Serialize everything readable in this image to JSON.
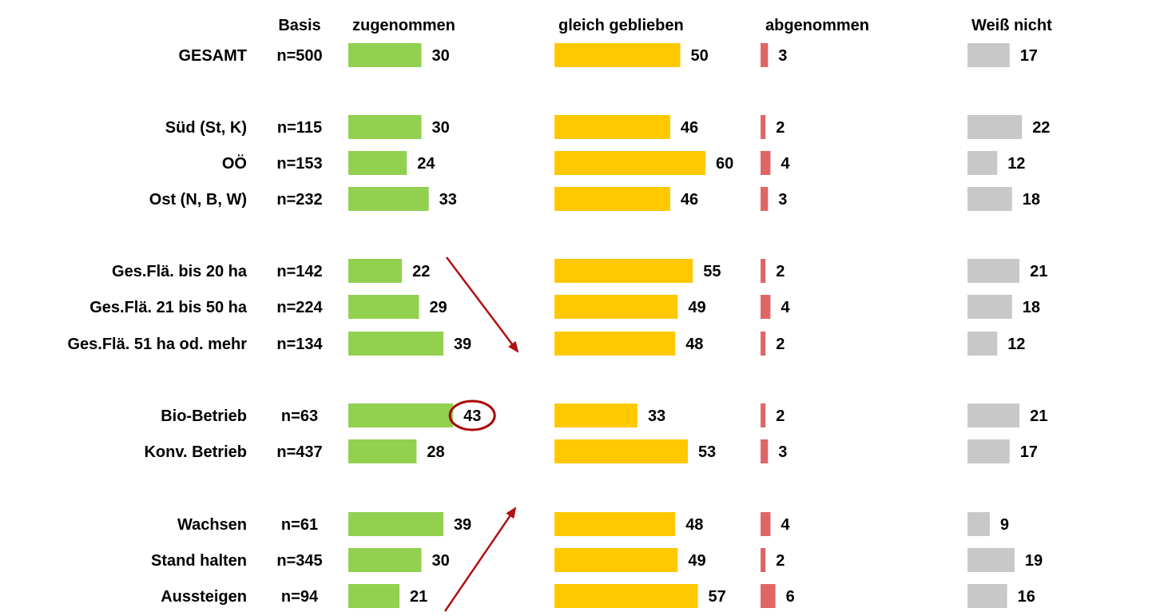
{
  "chart_data": {
    "type": "bar",
    "basis_header": "Basis",
    "series": [
      {
        "name": "zugenommen",
        "color": "#92d050",
        "values": [
          30,
          30,
          24,
          33,
          22,
          29,
          39,
          43,
          28,
          39,
          30,
          21
        ]
      },
      {
        "name": "gleich geblieben",
        "color": "#ffc800",
        "values": [
          50,
          46,
          60,
          46,
          55,
          49,
          48,
          33,
          53,
          48,
          49,
          57
        ]
      },
      {
        "name": "abgenommen",
        "color": "#e06666",
        "values": [
          3,
          2,
          4,
          3,
          2,
          4,
          2,
          2,
          3,
          4,
          2,
          6
        ]
      },
      {
        "name": "Weiß nicht",
        "color": "#c8c8c8",
        "values": [
          17,
          22,
          12,
          18,
          21,
          18,
          12,
          21,
          17,
          9,
          19,
          16
        ]
      }
    ],
    "rows": [
      {
        "label": "GESAMT",
        "basis": "n=500"
      },
      {
        "label": "Süd (St, K)",
        "basis": "n=115"
      },
      {
        "label": "OÖ",
        "basis": "n=153"
      },
      {
        "label": "Ost (N, B, W)",
        "basis": "n=232"
      },
      {
        "label": "Ges.Flä. bis 20 ha",
        "basis": "n=142"
      },
      {
        "label": "Ges.Flä. 21 bis 50 ha",
        "basis": "n=224"
      },
      {
        "label": "Ges.Flä. 51 ha od. mehr",
        "basis": "n=134"
      },
      {
        "label": "Bio-Betrieb",
        "basis": "n=63"
      },
      {
        "label": "Konv. Betrieb",
        "basis": "n=437"
      },
      {
        "label": "Wachsen",
        "basis": "n=61"
      },
      {
        "label": "Stand halten",
        "basis": "n=345"
      },
      {
        "label": "Aussteigen",
        "basis": "n=94"
      }
    ],
    "highlight": {
      "series": "zugenommen",
      "row": "Bio-Betrieb",
      "color": "#a80000"
    },
    "arrows": {
      "color": "#b01010",
      "groups": [
        "Ges.Flä.",
        "Wachsen/Stand halten/Aussteigen"
      ]
    }
  }
}
